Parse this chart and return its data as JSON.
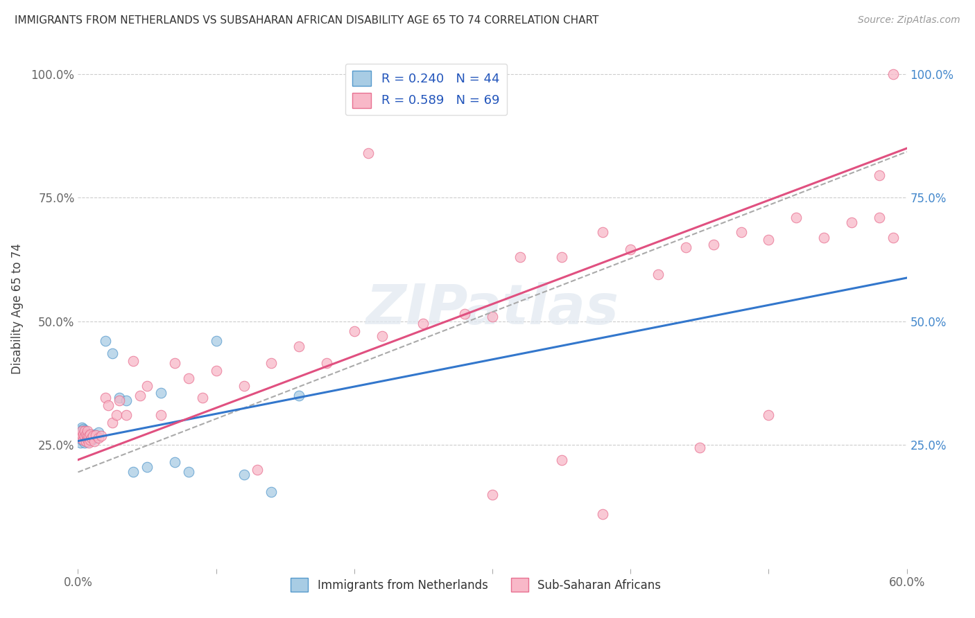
{
  "title": "IMMIGRANTS FROM NETHERLANDS VS SUBSAHARAN AFRICAN DISABILITY AGE 65 TO 74 CORRELATION CHART",
  "source": "Source: ZipAtlas.com",
  "ylabel": "Disability Age 65 to 74",
  "xlim": [
    0.0,
    0.6
  ],
  "ylim": [
    0.0,
    1.05
  ],
  "xticks": [
    0.0,
    0.1,
    0.2,
    0.3,
    0.4,
    0.5,
    0.6
  ],
  "xticklabels": [
    "0.0%",
    "",
    "",
    "",
    "",
    "",
    "60.0%"
  ],
  "yticks_left": [
    0.0,
    0.25,
    0.5,
    0.75,
    1.0
  ],
  "yticklabels_left": [
    "",
    "25.0%",
    "50.0%",
    "75.0%",
    "100.0%"
  ],
  "yticks_right": [
    0.0,
    0.25,
    0.5,
    0.75,
    1.0
  ],
  "yticklabels_right": [
    "",
    "25.0%",
    "50.0%",
    "75.0%",
    "100.0%"
  ],
  "legend_text1": "R = 0.240   N = 44",
  "legend_text2": "R = 0.589   N = 69",
  "color_blue_fill": "#a8cce4",
  "color_blue_edge": "#5599cc",
  "color_pink_fill": "#f8b8c8",
  "color_pink_edge": "#e87090",
  "color_blue_line": "#3377cc",
  "color_pink_line": "#e05080",
  "color_dashed": "#aaaaaa",
  "legend_label1": "Immigrants from Netherlands",
  "legend_label2": "Sub-Saharan Africans",
  "watermark": "ZIPatlas",
  "blue_x": [
    0.001,
    0.001,
    0.002,
    0.002,
    0.002,
    0.003,
    0.003,
    0.003,
    0.003,
    0.004,
    0.004,
    0.004,
    0.004,
    0.005,
    0.005,
    0.005,
    0.005,
    0.006,
    0.006,
    0.006,
    0.007,
    0.007,
    0.008,
    0.008,
    0.009,
    0.01,
    0.01,
    0.011,
    0.012,
    0.013,
    0.015,
    0.02,
    0.025,
    0.03,
    0.035,
    0.04,
    0.05,
    0.06,
    0.07,
    0.08,
    0.1,
    0.12,
    0.14,
    0.16
  ],
  "blue_y": [
    0.265,
    0.275,
    0.255,
    0.27,
    0.28,
    0.26,
    0.27,
    0.278,
    0.285,
    0.26,
    0.268,
    0.275,
    0.282,
    0.255,
    0.263,
    0.272,
    0.28,
    0.258,
    0.268,
    0.275,
    0.262,
    0.272,
    0.258,
    0.268,
    0.265,
    0.26,
    0.27,
    0.268,
    0.272,
    0.265,
    0.275,
    0.46,
    0.435,
    0.345,
    0.34,
    0.195,
    0.205,
    0.355,
    0.215,
    0.195,
    0.46,
    0.19,
    0.155,
    0.35
  ],
  "pink_x": [
    0.001,
    0.002,
    0.003,
    0.003,
    0.004,
    0.004,
    0.005,
    0.005,
    0.006,
    0.006,
    0.007,
    0.007,
    0.007,
    0.008,
    0.008,
    0.009,
    0.009,
    0.01,
    0.011,
    0.012,
    0.013,
    0.015,
    0.017,
    0.02,
    0.022,
    0.025,
    0.028,
    0.03,
    0.035,
    0.04,
    0.045,
    0.05,
    0.06,
    0.07,
    0.08,
    0.09,
    0.1,
    0.12,
    0.14,
    0.16,
    0.18,
    0.2,
    0.22,
    0.25,
    0.28,
    0.3,
    0.32,
    0.35,
    0.38,
    0.4,
    0.42,
    0.44,
    0.46,
    0.48,
    0.5,
    0.52,
    0.54,
    0.56,
    0.58,
    0.59,
    0.21,
    0.3,
    0.35,
    0.38,
    0.45,
    0.5,
    0.13,
    0.58,
    0.59
  ],
  "pink_y": [
    0.27,
    0.265,
    0.27,
    0.278,
    0.26,
    0.272,
    0.268,
    0.278,
    0.258,
    0.272,
    0.262,
    0.27,
    0.278,
    0.255,
    0.268,
    0.26,
    0.272,
    0.265,
    0.268,
    0.258,
    0.27,
    0.265,
    0.268,
    0.345,
    0.33,
    0.295,
    0.31,
    0.34,
    0.31,
    0.42,
    0.35,
    0.37,
    0.31,
    0.415,
    0.385,
    0.345,
    0.4,
    0.37,
    0.415,
    0.45,
    0.415,
    0.48,
    0.47,
    0.495,
    0.515,
    0.51,
    0.63,
    0.63,
    0.68,
    0.645,
    0.595,
    0.65,
    0.655,
    0.68,
    0.665,
    0.71,
    0.67,
    0.7,
    0.71,
    0.67,
    0.84,
    0.15,
    0.22,
    0.11,
    0.245,
    0.31,
    0.2,
    0.795,
    1.0
  ],
  "blue_reg_m": 0.55,
  "blue_reg_b": 0.258,
  "pink_reg_m": 1.05,
  "pink_reg_b": 0.22,
  "dash_reg_m": 1.08,
  "dash_reg_b": 0.195
}
